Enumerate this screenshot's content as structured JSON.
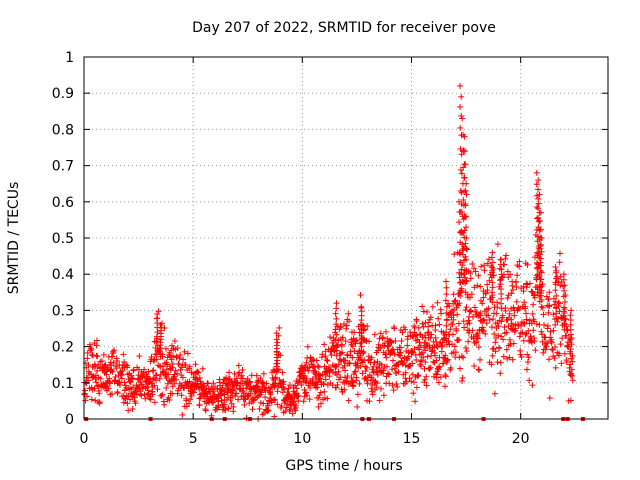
{
  "chart_data": {
    "type": "scatter",
    "title": "Day 207 of 2022, SRMTID for receiver pove",
    "xlabel": "GPS time / hours",
    "ylabel": "SRMTID / TECUs",
    "xlim": [
      0,
      24
    ],
    "ylim": [
      0,
      1
    ],
    "xticks": [
      0,
      5,
      10,
      15,
      20
    ],
    "xtick_labels": [
      "0",
      "5",
      "10",
      "15",
      "20"
    ],
    "yticks": [
      0,
      0.1,
      0.2,
      0.3,
      0.4,
      0.5,
      0.6,
      0.7,
      0.8,
      0.9,
      1
    ],
    "ytick_labels": [
      "0",
      "0.1",
      "0.2",
      "0.3",
      "0.4",
      "0.5",
      "0.6",
      "0.7",
      "0.8",
      "0.9",
      "1"
    ],
    "grid": true,
    "series_color": "#ff0000",
    "grid_color": "#a0a0a0",
    "zero_markers_x": [
      0.1,
      3.05,
      5.85,
      6.45,
      7.6,
      12.75,
      13.05,
      14.2,
      18.3,
      21.95,
      22.15,
      22.85
    ],
    "profile": [
      [
        0.0,
        0.12,
        0.04
      ],
      [
        0.3,
        0.14,
        0.04
      ],
      [
        0.6,
        0.13,
        0.04
      ],
      [
        1.0,
        0.11,
        0.03
      ],
      [
        1.4,
        0.12,
        0.04
      ],
      [
        1.8,
        0.1,
        0.03
      ],
      [
        2.2,
        0.09,
        0.03
      ],
      [
        2.6,
        0.1,
        0.03
      ],
      [
        3.0,
        0.09,
        0.03
      ],
      [
        3.3,
        0.16,
        0.05
      ],
      [
        3.5,
        0.18,
        0.06
      ],
      [
        3.8,
        0.13,
        0.04
      ],
      [
        4.2,
        0.14,
        0.04
      ],
      [
        4.6,
        0.12,
        0.04
      ],
      [
        5.0,
        0.09,
        0.03
      ],
      [
        5.4,
        0.08,
        0.03
      ],
      [
        5.8,
        0.06,
        0.02
      ],
      [
        6.2,
        0.07,
        0.02
      ],
      [
        6.6,
        0.08,
        0.03
      ],
      [
        7.0,
        0.09,
        0.03
      ],
      [
        7.4,
        0.08,
        0.03
      ],
      [
        7.8,
        0.07,
        0.03
      ],
      [
        8.2,
        0.06,
        0.03
      ],
      [
        8.6,
        0.07,
        0.03
      ],
      [
        8.9,
        0.15,
        0.05
      ],
      [
        9.2,
        0.05,
        0.02
      ],
      [
        9.6,
        0.06,
        0.02
      ],
      [
        10.0,
        0.11,
        0.03
      ],
      [
        10.4,
        0.12,
        0.04
      ],
      [
        10.8,
        0.1,
        0.03
      ],
      [
        11.2,
        0.14,
        0.04
      ],
      [
        11.6,
        0.18,
        0.06
      ],
      [
        12.0,
        0.17,
        0.05
      ],
      [
        12.4,
        0.15,
        0.05
      ],
      [
        12.8,
        0.2,
        0.06
      ],
      [
        13.2,
        0.13,
        0.04
      ],
      [
        13.6,
        0.15,
        0.05
      ],
      [
        14.0,
        0.18,
        0.05
      ],
      [
        14.4,
        0.16,
        0.04
      ],
      [
        14.8,
        0.17,
        0.05
      ],
      [
        15.2,
        0.18,
        0.05
      ],
      [
        15.6,
        0.2,
        0.05
      ],
      [
        16.0,
        0.21,
        0.06
      ],
      [
        16.4,
        0.19,
        0.05
      ],
      [
        16.8,
        0.22,
        0.06
      ],
      [
        17.1,
        0.28,
        0.08
      ],
      [
        17.4,
        0.4,
        0.12
      ],
      [
        17.6,
        0.3,
        0.08
      ],
      [
        17.9,
        0.26,
        0.07
      ],
      [
        18.2,
        0.28,
        0.08
      ],
      [
        18.6,
        0.33,
        0.08
      ],
      [
        19.0,
        0.3,
        0.08
      ],
      [
        19.4,
        0.32,
        0.08
      ],
      [
        19.8,
        0.3,
        0.08
      ],
      [
        20.2,
        0.28,
        0.08
      ],
      [
        20.6,
        0.26,
        0.07
      ],
      [
        20.8,
        0.4,
        0.12
      ],
      [
        21.1,
        0.22,
        0.06
      ],
      [
        21.5,
        0.24,
        0.07
      ],
      [
        21.8,
        0.3,
        0.08
      ],
      [
        22.1,
        0.22,
        0.06
      ],
      [
        22.4,
        0.14,
        0.05
      ]
    ],
    "spikes": [
      [
        3.35,
        0.29
      ],
      [
        3.5,
        0.26
      ],
      [
        8.85,
        0.22
      ],
      [
        11.55,
        0.32
      ],
      [
        12.7,
        0.31
      ],
      [
        16.6,
        0.38
      ],
      [
        17.25,
        0.92
      ],
      [
        17.3,
        0.89
      ],
      [
        17.35,
        0.83
      ],
      [
        17.4,
        0.78
      ],
      [
        17.45,
        0.74
      ],
      [
        17.5,
        0.65
      ],
      [
        17.2,
        0.6
      ],
      [
        18.7,
        0.46
      ],
      [
        19.1,
        0.44
      ],
      [
        20.75,
        0.68
      ],
      [
        20.8,
        0.66
      ],
      [
        20.85,
        0.62
      ],
      [
        20.9,
        0.57
      ],
      [
        20.95,
        0.5
      ],
      [
        21.6,
        0.42
      ],
      [
        22.0,
        0.4
      ],
      [
        22.3,
        0.3
      ]
    ]
  }
}
